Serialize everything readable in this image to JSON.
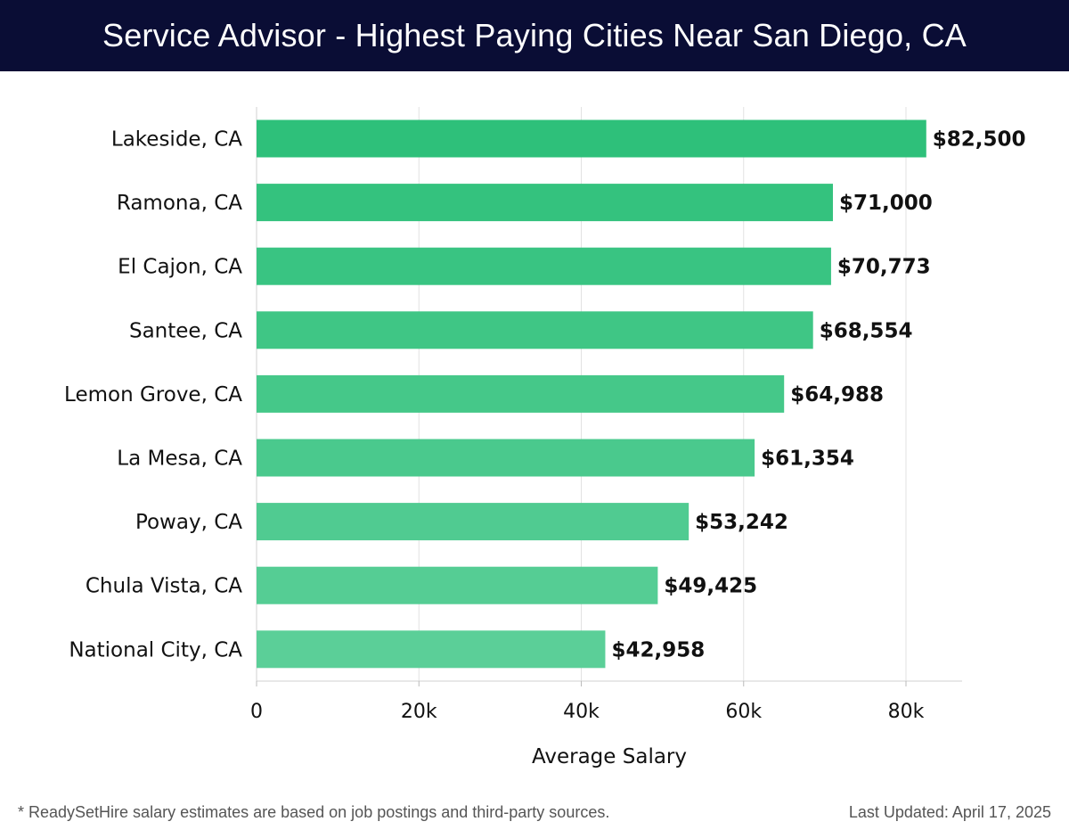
{
  "header": {
    "title": "Service Advisor - Highest Paying Cities Near San Diego, CA"
  },
  "chart_data": {
    "type": "bar",
    "orientation": "horizontal",
    "title": "Service Advisor - Highest Paying Cities Near San Diego, CA",
    "categories": [
      "Lakeside, CA",
      "Ramona, CA",
      "El Cajon, CA",
      "Santee, CA",
      "Lemon Grove, CA",
      "La Mesa, CA",
      "Poway, CA",
      "Chula Vista, CA",
      "National City, CA"
    ],
    "values": [
      82500,
      71000,
      70773,
      68554,
      64988,
      61354,
      53242,
      49425,
      42958
    ],
    "value_labels": [
      "$82,500",
      "$71,000",
      "$70,773",
      "$68,554",
      "$64,988",
      "$61,354",
      "$53,242",
      "$49,425",
      "$42,958"
    ],
    "xlabel": "Average Salary",
    "ylabel": "",
    "xlim": [
      0,
      87000
    ],
    "xticks": [
      0,
      20000,
      40000,
      60000,
      80000
    ],
    "xtick_labels": [
      "0",
      "20k",
      "40k",
      "60k",
      "80k"
    ],
    "grid": true,
    "bar_color_top": "#2ec07a",
    "bar_color_bottom": "#5bcf98"
  },
  "footer": {
    "note": "* ReadySetHire salary estimates are based on job postings and third-party sources.",
    "updated": "Last Updated: April 17, 2025"
  }
}
